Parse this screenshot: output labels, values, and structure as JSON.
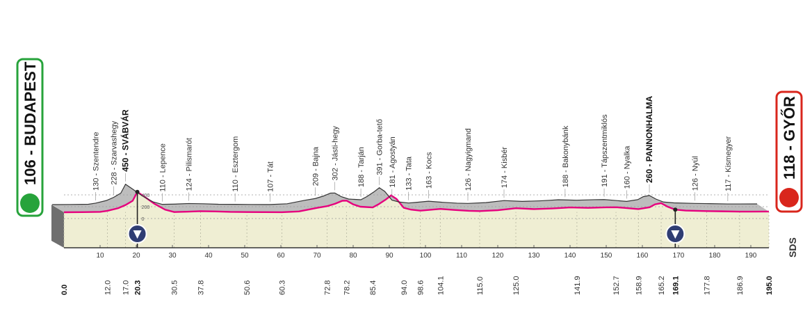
{
  "chart_data": {
    "type": "area",
    "start": {
      "label": "106 - BUDAPEST",
      "km": "0.0"
    },
    "finish": {
      "label": "118 - GYŐR",
      "km": "195.0"
    },
    "brand_mark": "SDS",
    "sprint_markers": [
      {
        "km": 20.3,
        "color": "#2f3d73"
      },
      {
        "km": 169.1,
        "color": "#2f3d73"
      }
    ],
    "y_ticks": [
      "400",
      "200",
      "0"
    ],
    "x_ticks": [
      "10",
      "20",
      "30",
      "40",
      "50",
      "60",
      "70",
      "80",
      "90",
      "100",
      "110",
      "120",
      "130",
      "140",
      "150",
      "160",
      "170",
      "180",
      "190"
    ],
    "km_labels": [
      {
        "text": "0.0",
        "km": 0.0,
        "bold": true
      },
      {
        "text": "12.0",
        "km": 12.0
      },
      {
        "text": "17.0",
        "km": 17.0
      },
      {
        "text": "20.3",
        "km": 20.3,
        "bold": true
      },
      {
        "text": "30.5",
        "km": 30.5
      },
      {
        "text": "37.8",
        "km": 37.8
      },
      {
        "text": "50.6",
        "km": 50.6
      },
      {
        "text": "60.3",
        "km": 60.3
      },
      {
        "text": "72.8",
        "km": 72.8
      },
      {
        "text": "78.2",
        "km": 78.2
      },
      {
        "text": "85.4",
        "km": 85.4
      },
      {
        "text": "94.0",
        "km": 94.0
      },
      {
        "text": "98.6",
        "km": 98.6
      },
      {
        "text": "104.1",
        "km": 104.1
      },
      {
        "text": "115.0",
        "km": 115.0
      },
      {
        "text": "125.0",
        "km": 125.0
      },
      {
        "text": "141.9",
        "km": 141.9
      },
      {
        "text": "152.7",
        "km": 152.7
      },
      {
        "text": "158.9",
        "km": 158.9
      },
      {
        "text": "165.2",
        "km": 165.2
      },
      {
        "text": "169.1",
        "km": 169.1,
        "bold": true
      },
      {
        "text": "177.8",
        "km": 177.8
      },
      {
        "text": "186.9",
        "km": 186.9
      },
      {
        "text": "195.0",
        "km": 195.0,
        "bold": true
      }
    ],
    "places": [
      {
        "text": "130 - Szentendre",
        "km": 12.0
      },
      {
        "text": "228 - Szarvashegy",
        "km": 17.0
      },
      {
        "text": "450 - SVÁBVÁR",
        "km": 20.3,
        "bold": true
      },
      {
        "text": "110 - Lepence",
        "km": 30.5
      },
      {
        "text": "124 - Pilismarót",
        "km": 37.8
      },
      {
        "text": "110 - Esztergom",
        "km": 50.6
      },
      {
        "text": "107 - Tát",
        "km": 60.3
      },
      {
        "text": "209 - Bajna",
        "km": 72.8
      },
      {
        "text": "302 - Jásti-hegy",
        "km": 78.2
      },
      {
        "text": "188 - Tarján",
        "km": 85.4
      },
      {
        "text": "391 - Gorba-tető",
        "km": 90.5
      },
      {
        "text": "181 - Agostyán",
        "km": 94.0
      },
      {
        "text": "133 - Tata",
        "km": 98.6
      },
      {
        "text": "163 - Kocs",
        "km": 104.1
      },
      {
        "text": "126 - Nagyigmand",
        "km": 115.0
      },
      {
        "text": "174 - Kisbér",
        "km": 125.0
      },
      {
        "text": "188 - Bakonybánk",
        "km": 141.9
      },
      {
        "text": "191 - Tápszentmiklós",
        "km": 152.7
      },
      {
        "text": "160 - Nyalka",
        "km": 158.9
      },
      {
        "text": "260 - PANNONHALMA",
        "km": 165.2,
        "bold": true
      },
      {
        "text": "126 - Nyúl",
        "km": 177.8
      },
      {
        "text": "117 - Kismegyer",
        "km": 186.9
      }
    ],
    "profile": {
      "x": [
        0,
        5,
        10,
        12,
        15,
        17,
        19,
        20.3,
        22,
        25,
        28,
        30.5,
        34,
        37.8,
        42,
        46,
        50.6,
        55,
        60.3,
        65,
        70,
        72.8,
        75,
        77,
        78.2,
        80,
        82,
        85.4,
        87,
        89,
        90.5,
        92,
        94,
        96,
        98.6,
        100,
        104.1,
        108,
        112,
        115,
        120,
        125,
        130,
        135,
        138,
        140,
        141.9,
        145,
        150,
        152.7,
        155,
        158.9,
        162,
        163.5,
        165.2,
        167,
        169.1,
        172,
        177.8,
        182,
        186.9,
        190,
        195
      ],
      "y": [
        106,
        108,
        112,
        130,
        175,
        228,
        300,
        450,
        380,
        250,
        150,
        110,
        115,
        124,
        120,
        112,
        110,
        108,
        107,
        120,
        180,
        209,
        250,
        300,
        302,
        240,
        200,
        188,
        240,
        320,
        391,
        330,
        181,
        150,
        133,
        140,
        163,
        145,
        130,
        126,
        140,
        174,
        160,
        170,
        180,
        188,
        185,
        180,
        189,
        191,
        180,
        160,
        190,
        240,
        260,
        200,
        150,
        135,
        126,
        122,
        117,
        117,
        118
      ]
    },
    "colors": {
      "profile": "#e6007e",
      "start": "#27a33b",
      "finish": "#d9261c",
      "fill": "#d8d8d8",
      "dark": "#6f6f6f"
    }
  }
}
